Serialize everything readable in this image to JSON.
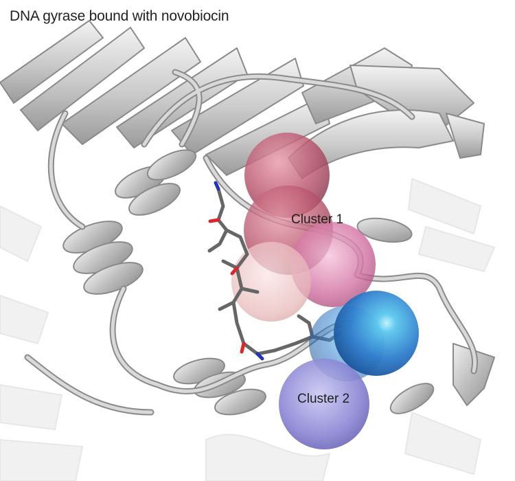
{
  "figure": {
    "title": "DNA gyrase bound with novobiocin",
    "clusters": [
      {
        "label": "Cluster 1",
        "color": "#c04f6e"
      },
      {
        "label": "Cluster 2",
        "color": "#3a7fc8"
      }
    ],
    "colors": {
      "protein_ribbon": "#c9c9c9",
      "protein_edge": "#8c8c8c",
      "ligand_carbon": "#777777",
      "ligand_oxygen": "#e0252a",
      "ligand_nitrogen": "#2233bb",
      "cluster2_secondary": "#8a86d2"
    }
  }
}
